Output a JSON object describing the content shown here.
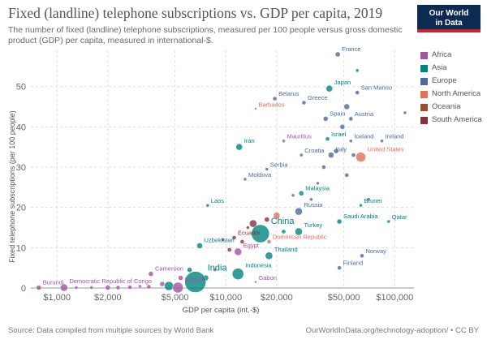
{
  "header": {
    "title": "Fixed (landline) telephone subscriptions vs. GDP per capita, 2019",
    "subtitle": "The number of fixed (landline) telephone subscriptions, measured per 100 people versus gross domestic product (GDP) per capita, measured in international-$.",
    "logo_line1": "Our World",
    "logo_line2": "in Data"
  },
  "footer": {
    "source": "Source: Data compiled from multiple sources by World Bank",
    "link": "OurWorldInData.org/technology-adoption/ • CC BY"
  },
  "colors": {
    "Africa": "#a2559c",
    "Asia": "#00847e",
    "Europe": "#4c6a9c",
    "North America": "#e56e5a",
    "Oceania": "#9a5129",
    "South America": "#883039"
  },
  "legend": [
    "Africa",
    "Asia",
    "Europe",
    "North America",
    "Oceania",
    "South America"
  ],
  "chart_data": {
    "type": "scatter",
    "title": "Fixed (landline) telephone subscriptions vs. GDP per capita, 2019",
    "xlabel": "GDP per capita (int.-$)",
    "ylabel": "Fixed telephone subscriptions (per 100 people)",
    "x_scale": "log",
    "xlim": [
      700,
      130000
    ],
    "ylim": [
      0,
      59
    ],
    "x_ticks": [
      1000,
      2000,
      5000,
      10000,
      20000,
      50000,
      100000
    ],
    "x_tick_labels": [
      "$1,000",
      "$2,000",
      "$5,000",
      "$10,000",
      "$20,000",
      "$50,000",
      "$100,000"
    ],
    "y_ticks": [
      0,
      10,
      20,
      30,
      40,
      50
    ],
    "y_tick_labels": [
      "0",
      "10",
      "20",
      "30",
      "40",
      "50"
    ],
    "grid": true,
    "legend_position": "right",
    "labeled_points": [
      {
        "name": "France",
        "x": 46000,
        "y": 58,
        "region": "Europe",
        "r": 3
      },
      {
        "name": "Japan",
        "x": 41000,
        "y": 49.5,
        "region": "Asia",
        "r": 4
      },
      {
        "name": "San Marino",
        "x": 60000,
        "y": 48.5,
        "region": "Europe",
        "r": 2.5
      },
      {
        "name": "Belarus",
        "x": 19500,
        "y": 47,
        "region": "Europe",
        "r": 2.5
      },
      {
        "name": "Greece",
        "x": 29000,
        "y": 46,
        "region": "Europe",
        "r": 2.5
      },
      {
        "name": "Barbados",
        "x": 15000,
        "y": 44.5,
        "region": "North America",
        "r": 1.5
      },
      {
        "name": "Spain",
        "x": 39000,
        "y": 42,
        "region": "Europe",
        "r": 3
      },
      {
        "name": "Austria",
        "x": 55000,
        "y": 42,
        "region": "Europe",
        "r": 2.5
      },
      {
        "name": "Israel",
        "x": 40000,
        "y": 37,
        "region": "Asia",
        "r": 2.5
      },
      {
        "name": "Iceland",
        "x": 55000,
        "y": 36.5,
        "region": "Europe",
        "r": 2
      },
      {
        "name": "Ireland",
        "x": 84000,
        "y": 36.5,
        "region": "Europe",
        "r": 2
      },
      {
        "name": "Mauritius",
        "x": 22000,
        "y": 36.5,
        "region": "Africa",
        "r": 2
      },
      {
        "name": "Iran",
        "x": 12000,
        "y": 35,
        "region": "Asia",
        "r": 4
      },
      {
        "name": "United States",
        "x": 63000,
        "y": 32.5,
        "region": "North America",
        "r": 6
      },
      {
        "name": "Italy",
        "x": 42000,
        "y": 33,
        "region": "Europe",
        "r": 3.5
      },
      {
        "name": "Croatia",
        "x": 28000,
        "y": 33,
        "region": "Europe",
        "r": 2
      },
      {
        "name": "Serbia",
        "x": 17500,
        "y": 29.5,
        "region": "Europe",
        "r": 2
      },
      {
        "name": "Moldova",
        "x": 13000,
        "y": 27,
        "region": "Europe",
        "r": 2
      },
      {
        "name": "Malaysia",
        "x": 28000,
        "y": 23.5,
        "region": "Asia",
        "r": 3
      },
      {
        "name": "Laos",
        "x": 7800,
        "y": 20.5,
        "region": "Asia",
        "r": 2
      },
      {
        "name": "Brunei",
        "x": 63000,
        "y": 20.5,
        "region": "Asia",
        "r": 2
      },
      {
        "name": "Russia",
        "x": 27000,
        "y": 19,
        "region": "Europe",
        "r": 4.5
      },
      {
        "name": "China",
        "x": 16000,
        "y": 13.5,
        "region": "Asia",
        "r": 11
      },
      {
        "name": "Saudi Arabia",
        "x": 47000,
        "y": 16.5,
        "region": "Asia",
        "r": 3
      },
      {
        "name": "Qatar",
        "x": 92000,
        "y": 16.5,
        "region": "Asia",
        "r": 2
      },
      {
        "name": "Turkey",
        "x": 27000,
        "y": 14,
        "region": "Asia",
        "r": 4.5
      },
      {
        "name": "Ecuador",
        "x": 11200,
        "y": 12.5,
        "region": "South America",
        "r": 2.5
      },
      {
        "name": "Dominican Republic",
        "x": 18000,
        "y": 11.5,
        "region": "North America",
        "r": 2.5
      },
      {
        "name": "Uzbekistan",
        "x": 7000,
        "y": 10.5,
        "region": "Asia",
        "r": 3.5
      },
      {
        "name": "Egypt",
        "x": 11800,
        "y": 9,
        "region": "Africa",
        "r": 4.5
      },
      {
        "name": "Thailand",
        "x": 18000,
        "y": 8,
        "region": "Asia",
        "r": 4.5
      },
      {
        "name": "Norway",
        "x": 64000,
        "y": 8,
        "region": "Europe",
        "r": 2.5
      },
      {
        "name": "Cameroon",
        "x": 3600,
        "y": 3.5,
        "region": "Africa",
        "r": 3
      },
      {
        "name": "India",
        "x": 6600,
        "y": 1.5,
        "region": "Asia",
        "r": 13
      },
      {
        "name": "Indonesia",
        "x": 11800,
        "y": 3.5,
        "region": "Asia",
        "r": 7
      },
      {
        "name": "Finland",
        "x": 47000,
        "y": 5,
        "region": "Europe",
        "r": 2.5
      },
      {
        "name": "Burundi",
        "x": 780,
        "y": 0.1,
        "region": "Africa",
        "r": 3
      },
      {
        "name": "Democratic Republic of Congo",
        "x": 1100,
        "y": 0.1,
        "region": "Africa",
        "r": 4.5
      },
      {
        "name": "Nigeria",
        "x": 5200,
        "y": 0.1,
        "region": "Africa",
        "r": 6.5
      },
      {
        "name": "Gabon",
        "x": 15000,
        "y": 1.5,
        "region": "Africa",
        "r": 1.5
      }
    ],
    "unlabeled_points": [
      {
        "x": 1300,
        "y": 0.1,
        "region": "Africa",
        "r": 2
      },
      {
        "x": 1600,
        "y": 0.1,
        "region": "Africa",
        "r": 2
      },
      {
        "x": 2000,
        "y": 0.1,
        "region": "Africa",
        "r": 3
      },
      {
        "x": 2300,
        "y": 0.1,
        "region": "Africa",
        "r": 2.5
      },
      {
        "x": 2700,
        "y": 0.2,
        "region": "Africa",
        "r": 2.5
      },
      {
        "x": 3100,
        "y": 0.4,
        "region": "Africa",
        "r": 2
      },
      {
        "x": 3500,
        "y": 0.3,
        "region": "Africa",
        "r": 2.5
      },
      {
        "x": 4200,
        "y": 1,
        "region": "Africa",
        "r": 3
      },
      {
        "x": 4600,
        "y": 0.5,
        "region": "Asia",
        "r": 5.5
      },
      {
        "x": 5400,
        "y": 2.5,
        "region": "Africa",
        "r": 3
      },
      {
        "x": 6100,
        "y": 4.5,
        "region": "Asia",
        "r": 3
      },
      {
        "x": 7600,
        "y": 2.5,
        "region": "Asia",
        "r": 3.5
      },
      {
        "x": 8600,
        "y": 4.5,
        "region": "Africa",
        "r": 2
      },
      {
        "x": 9600,
        "y": 12,
        "region": "South America",
        "r": 2
      },
      {
        "x": 10500,
        "y": 9.5,
        "region": "South America",
        "r": 2.5
      },
      {
        "x": 12500,
        "y": 11.5,
        "region": "South America",
        "r": 2.5
      },
      {
        "x": 13500,
        "y": 15,
        "region": "South America",
        "r": 2
      },
      {
        "x": 14500,
        "y": 16,
        "region": "South America",
        "r": 4.5
      },
      {
        "x": 17500,
        "y": 17,
        "region": "South America",
        "r": 3
      },
      {
        "x": 20000,
        "y": 18,
        "region": "North America",
        "r": 4
      },
      {
        "x": 22000,
        "y": 14,
        "region": "Asia",
        "r": 2.5
      },
      {
        "x": 25000,
        "y": 23,
        "region": "Europe",
        "r": 2
      },
      {
        "x": 32000,
        "y": 22,
        "region": "Europe",
        "r": 2
      },
      {
        "x": 35000,
        "y": 26,
        "region": "Europe",
        "r": 2
      },
      {
        "x": 38000,
        "y": 30,
        "region": "Europe",
        "r": 2.5
      },
      {
        "x": 45000,
        "y": 34,
        "region": "Europe",
        "r": 3
      },
      {
        "x": 49000,
        "y": 40,
        "region": "Europe",
        "r": 3
      },
      {
        "x": 52000,
        "y": 45,
        "region": "Europe",
        "r": 3.5
      },
      {
        "x": 52000,
        "y": 28,
        "region": "Europe",
        "r": 2.5
      },
      {
        "x": 57000,
        "y": 33,
        "region": "Europe",
        "r": 2.5
      },
      {
        "x": 70000,
        "y": 22,
        "region": "Asia",
        "r": 2
      },
      {
        "x": 115000,
        "y": 43.5,
        "region": "Europe",
        "r": 2
      },
      {
        "x": 60000,
        "y": 54,
        "region": "Asia",
        "r": 2
      }
    ]
  }
}
